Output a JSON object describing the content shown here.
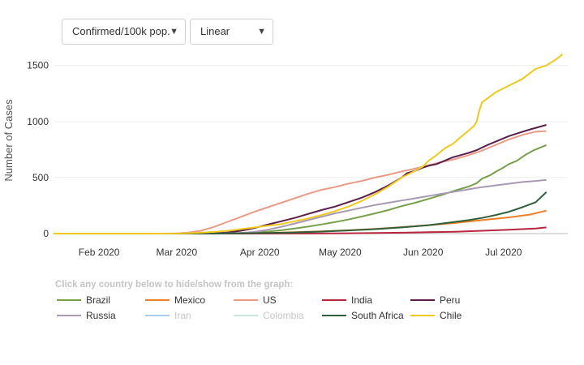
{
  "controls": {
    "metric": "Confirmed/100k pop.",
    "scale": "Linear",
    "arrow": "▼"
  },
  "legend_hint": "Click any country below to hide/show from the graph:",
  "chart_data": {
    "type": "line",
    "title": "",
    "xlabel": "",
    "ylabel": "Number of Cases",
    "x_ticks": [
      "Feb 2020",
      "Mar 2020",
      "Apr 2020",
      "May 2020",
      "Jun 2020",
      "Jul 2020"
    ],
    "y_ticks": [
      0,
      500,
      1000,
      1500
    ],
    "ylim": [
      0,
      1650
    ],
    "grid": "horizontal",
    "legend_position": "bottom",
    "series": [
      {
        "name": "Brazil",
        "color": "#77a04b",
        "visible": true,
        "points": [
          [
            0,
            0
          ],
          [
            55,
            0
          ],
          [
            65,
            2
          ],
          [
            70,
            5
          ],
          [
            75,
            10
          ],
          [
            80,
            18
          ],
          [
            85,
            30
          ],
          [
            90,
            45
          ],
          [
            95,
            62
          ],
          [
            100,
            82
          ],
          [
            105,
            102
          ],
          [
            110,
            125
          ],
          [
            115,
            152
          ],
          [
            120,
            180
          ],
          [
            125,
            210
          ],
          [
            130,
            245
          ],
          [
            135,
            275
          ],
          [
            140,
            310
          ],
          [
            145,
            345
          ],
          [
            150,
            385
          ],
          [
            155,
            420
          ],
          [
            158,
            450
          ],
          [
            160,
            490
          ],
          [
            163,
            520
          ],
          [
            165,
            550
          ],
          [
            168,
            590
          ],
          [
            170,
            620
          ],
          [
            173,
            650
          ],
          [
            176,
            700
          ],
          [
            179,
            740
          ],
          [
            182,
            770
          ],
          [
            184,
            790
          ]
        ]
      },
      {
        "name": "Mexico",
        "color": "#f07e26",
        "visible": true,
        "points": [
          [
            0,
            0
          ],
          [
            60,
            0
          ],
          [
            70,
            3
          ],
          [
            80,
            6
          ],
          [
            90,
            12
          ],
          [
            100,
            20
          ],
          [
            110,
            30
          ],
          [
            120,
            42
          ],
          [
            130,
            58
          ],
          [
            140,
            75
          ],
          [
            150,
            95
          ],
          [
            160,
            120
          ],
          [
            170,
            145
          ],
          [
            178,
            170
          ],
          [
            184,
            205
          ]
        ]
      },
      {
        "name": "US",
        "color": "#ea9b86",
        "visible": true,
        "points": [
          [
            0,
            0
          ],
          [
            45,
            0
          ],
          [
            50,
            8
          ],
          [
            55,
            25
          ],
          [
            60,
            60
          ],
          [
            65,
            105
          ],
          [
            70,
            150
          ],
          [
            75,
            195
          ],
          [
            80,
            235
          ],
          [
            85,
            275
          ],
          [
            90,
            315
          ],
          [
            95,
            355
          ],
          [
            100,
            390
          ],
          [
            105,
            415
          ],
          [
            110,
            445
          ],
          [
            115,
            470
          ],
          [
            120,
            500
          ],
          [
            125,
            525
          ],
          [
            130,
            555
          ],
          [
            135,
            580
          ],
          [
            140,
            610
          ],
          [
            145,
            640
          ],
          [
            150,
            665
          ],
          [
            155,
            700
          ],
          [
            160,
            740
          ],
          [
            165,
            790
          ],
          [
            170,
            840
          ],
          [
            175,
            880
          ],
          [
            180,
            910
          ],
          [
            184,
            915
          ]
        ]
      },
      {
        "name": "India",
        "color": "#b8263c",
        "visible": true,
        "points": [
          [
            0,
            0
          ],
          [
            70,
            0
          ],
          [
            90,
            1
          ],
          [
            110,
            3
          ],
          [
            130,
            8
          ],
          [
            140,
            12
          ],
          [
            150,
            17
          ],
          [
            160,
            25
          ],
          [
            170,
            35
          ],
          [
            180,
            45
          ],
          [
            184,
            55
          ]
        ]
      },
      {
        "name": "Peru",
        "color": "#5a1e48",
        "visible": true,
        "points": [
          [
            0,
            0
          ],
          [
            55,
            0
          ],
          [
            60,
            3
          ],
          [
            65,
            10
          ],
          [
            70,
            25
          ],
          [
            75,
            50
          ],
          [
            80,
            80
          ],
          [
            85,
            110
          ],
          [
            90,
            140
          ],
          [
            95,
            175
          ],
          [
            100,
            210
          ],
          [
            105,
            240
          ],
          [
            110,
            280
          ],
          [
            115,
            320
          ],
          [
            120,
            370
          ],
          [
            125,
            430
          ],
          [
            130,
            500
          ],
          [
            132,
            540
          ],
          [
            135,
            560
          ],
          [
            138,
            590
          ],
          [
            140,
            605
          ],
          [
            143,
            620
          ],
          [
            146,
            650
          ],
          [
            149,
            680
          ],
          [
            152,
            700
          ],
          [
            155,
            720
          ],
          [
            158,
            745
          ],
          [
            162,
            790
          ],
          [
            166,
            830
          ],
          [
            170,
            870
          ],
          [
            174,
            900
          ],
          [
            178,
            930
          ],
          [
            184,
            970
          ]
        ]
      },
      {
        "name": "Russia",
        "color": "#a899b3",
        "visible": true,
        "points": [
          [
            0,
            0
          ],
          [
            60,
            0
          ],
          [
            70,
            5
          ],
          [
            75,
            15
          ],
          [
            80,
            35
          ],
          [
            85,
            60
          ],
          [
            90,
            90
          ],
          [
            95,
            120
          ],
          [
            100,
            150
          ],
          [
            105,
            180
          ],
          [
            110,
            205
          ],
          [
            115,
            230
          ],
          [
            120,
            255
          ],
          [
            125,
            275
          ],
          [
            130,
            295
          ],
          [
            135,
            315
          ],
          [
            140,
            335
          ],
          [
            145,
            355
          ],
          [
            150,
            375
          ],
          [
            155,
            395
          ],
          [
            160,
            415
          ],
          [
            165,
            430
          ],
          [
            170,
            445
          ],
          [
            175,
            460
          ],
          [
            180,
            470
          ],
          [
            184,
            480
          ]
        ]
      },
      {
        "name": "Iran",
        "color": "#a9cde8",
        "visible": false,
        "points": []
      },
      {
        "name": "Colombia",
        "color": "#c9e6dc",
        "visible": false,
        "points": []
      },
      {
        "name": "South Africa",
        "color": "#2d5e3a",
        "visible": true,
        "points": [
          [
            0,
            0
          ],
          [
            60,
            0
          ],
          [
            80,
            5
          ],
          [
            90,
            10
          ],
          [
            100,
            18
          ],
          [
            110,
            28
          ],
          [
            120,
            40
          ],
          [
            130,
            55
          ],
          [
            140,
            75
          ],
          [
            145,
            90
          ],
          [
            150,
            105
          ],
          [
            155,
            120
          ],
          [
            160,
            140
          ],
          [
            165,
            165
          ],
          [
            170,
            195
          ],
          [
            175,
            235
          ],
          [
            180,
            280
          ],
          [
            184,
            370
          ]
        ]
      },
      {
        "name": "Chile",
        "color": "#f0c81e",
        "visible": true,
        "points": [
          [
            0,
            0
          ],
          [
            40,
            0
          ],
          [
            50,
            3
          ],
          [
            55,
            8
          ],
          [
            60,
            15
          ],
          [
            65,
            25
          ],
          [
            70,
            40
          ],
          [
            75,
            55
          ],
          [
            80,
            70
          ],
          [
            85,
            85
          ],
          [
            90,
            110
          ],
          [
            95,
            135
          ],
          [
            100,
            165
          ],
          [
            105,
            200
          ],
          [
            110,
            240
          ],
          [
            115,
            290
          ],
          [
            120,
            350
          ],
          [
            125,
            420
          ],
          [
            130,
            500
          ],
          [
            135,
            560
          ],
          [
            138,
            600
          ],
          [
            140,
            650
          ],
          [
            143,
            700
          ],
          [
            146,
            760
          ],
          [
            149,
            800
          ],
          [
            152,
            860
          ],
          [
            155,
            920
          ],
          [
            157,
            960
          ],
          [
            158,
            1000
          ],
          [
            159,
            1100
          ],
          [
            160,
            1170
          ],
          [
            165,
            1260
          ],
          [
            170,
            1320
          ],
          [
            175,
            1380
          ],
          [
            180,
            1470
          ],
          [
            184,
            1500
          ],
          [
            188,
            1560
          ],
          [
            190,
            1600
          ]
        ]
      }
    ]
  }
}
